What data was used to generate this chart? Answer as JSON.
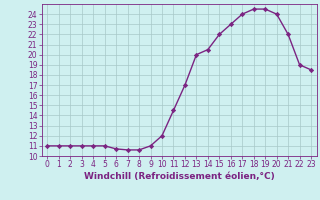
{
  "x": [
    0,
    1,
    2,
    3,
    4,
    5,
    6,
    7,
    8,
    9,
    10,
    11,
    12,
    13,
    14,
    15,
    16,
    17,
    18,
    19,
    20,
    21,
    22,
    23
  ],
  "y": [
    11,
    11,
    11,
    11,
    11,
    11,
    10.7,
    10.6,
    10.6,
    11,
    12,
    14.5,
    17,
    20,
    20.5,
    22,
    23,
    24,
    24.5,
    24.5,
    24,
    22,
    19,
    18.5
  ],
  "line_color": "#7B2482",
  "marker": "D",
  "marker_size": 2.2,
  "background_color": "#cff0f0",
  "grid_color": "#a8c8c8",
  "xlabel": "Windchill (Refroidissement éolien,°C)",
  "ylabel": "",
  "xlim": [
    -0.5,
    23.5
  ],
  "ylim": [
    10,
    25
  ],
  "yticks": [
    10,
    11,
    12,
    13,
    14,
    15,
    16,
    17,
    18,
    19,
    20,
    21,
    22,
    23,
    24
  ],
  "xticks": [
    0,
    1,
    2,
    3,
    4,
    5,
    6,
    7,
    8,
    9,
    10,
    11,
    12,
    13,
    14,
    15,
    16,
    17,
    18,
    19,
    20,
    21,
    22,
    23
  ],
  "xlabel_fontsize": 6.5,
  "tick_fontsize": 5.5,
  "line_width": 1.0,
  "axis_color": "#7B2482"
}
